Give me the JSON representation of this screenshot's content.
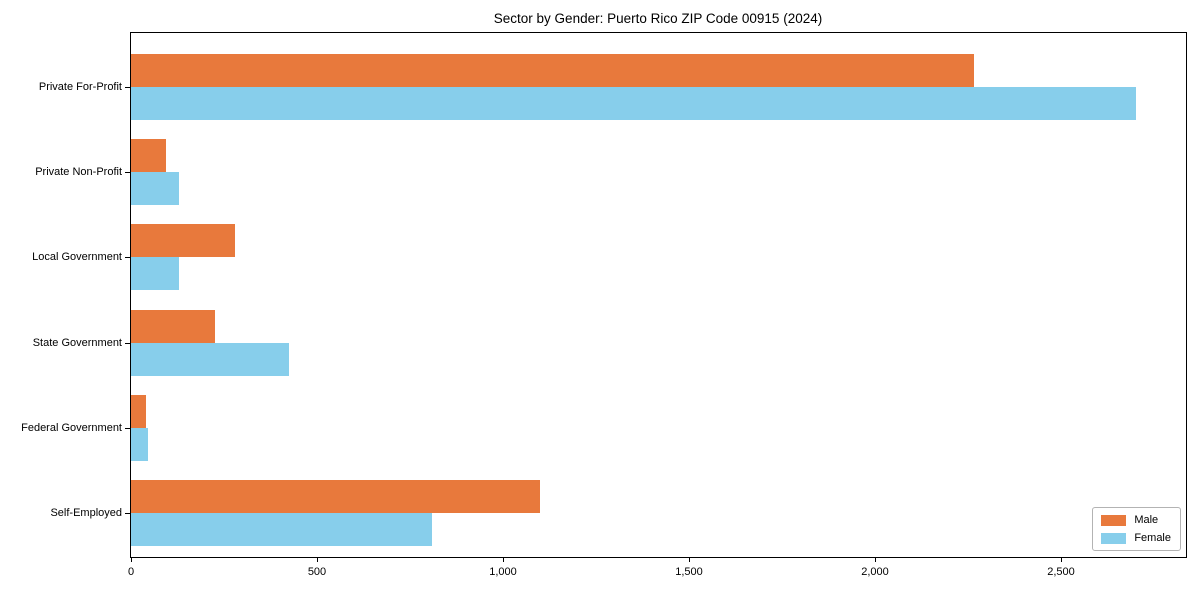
{
  "title": "Sector by Gender: Puerto Rico ZIP Code 00915 (2024)",
  "colors": {
    "male": "#E8793C",
    "female": "#87CEEB",
    "axis": "#000000",
    "legend_border": "#B3B3B3",
    "background": "#FFFFFF"
  },
  "chart_data": {
    "type": "bar",
    "orientation": "horizontal",
    "title": "Sector by Gender: Puerto Rico ZIP Code 00915 (2024)",
    "xlabel": "",
    "ylabel": "",
    "categories": [
      "Private For-Profit",
      "Private Non-Profit",
      "Local Government",
      "State Government",
      "Federal Government",
      "Self-Employed"
    ],
    "series": [
      {
        "name": "Male",
        "color": "#E8793C",
        "values": [
          2265,
          95,
          280,
          225,
          40,
          1100
        ]
      },
      {
        "name": "Female",
        "color": "#87CEEB",
        "values": [
          2700,
          128,
          128,
          425,
          45,
          810
        ]
      }
    ],
    "xlim": [
      0,
      2835
    ],
    "xticks": [
      0,
      500,
      1000,
      1500,
      2000,
      2500
    ],
    "xtick_labels": [
      "0",
      "500",
      "1,000",
      "1,500",
      "2,000",
      "2,500"
    ],
    "grid": false,
    "legend": {
      "position": "lower right",
      "entries": [
        "Male",
        "Female"
      ]
    }
  }
}
